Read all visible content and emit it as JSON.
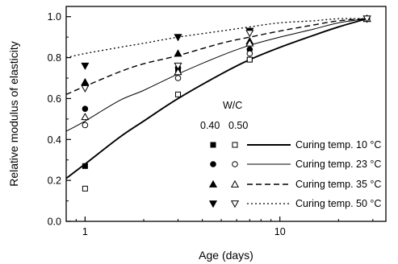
{
  "chart_data": {
    "type": "scatter",
    "xlabel": "Age (days)",
    "ylabel": "Relative modulus of elasticity",
    "x_scale": "log",
    "xlim": [
      0.8,
      35
    ],
    "ylim": [
      0.0,
      1.05
    ],
    "x_ticks": [
      1,
      10
    ],
    "x_tick_labels": [
      "1",
      "10"
    ],
    "y_ticks": [
      0.0,
      0.2,
      0.4,
      0.6,
      0.8,
      1.0
    ],
    "y_tick_labels": [
      "0.0",
      "0.2",
      "0.4",
      "0.6",
      "0.8",
      "1.0"
    ],
    "grid": false,
    "legend_header": "W/C",
    "legend_columns": [
      "0.40",
      "0.50"
    ],
    "series": [
      {
        "name": "Curing temp. 10 °C",
        "line_style": "solid-thick",
        "curve": {
          "x": [
            0.8,
            1,
            1.5,
            2,
            3,
            5,
            7,
            10,
            15,
            20,
            28
          ],
          "y": [
            0.21,
            0.28,
            0.41,
            0.49,
            0.6,
            0.72,
            0.79,
            0.85,
            0.91,
            0.95,
            0.99
          ]
        },
        "wc040": {
          "marker": "square-filled",
          "x": [
            1,
            3,
            7,
            28
          ],
          "y": [
            0.27,
            0.74,
            0.79,
            0.99
          ]
        },
        "wc050": {
          "marker": "square-open",
          "x": [
            1,
            3,
            7,
            28
          ],
          "y": [
            0.16,
            0.62,
            0.79,
            0.99
          ]
        }
      },
      {
        "name": "Curing temp. 23 °C",
        "line_style": "solid-thin",
        "curve": {
          "x": [
            0.8,
            1,
            1.5,
            2,
            3,
            5,
            7,
            10,
            15,
            20,
            28
          ],
          "y": [
            0.44,
            0.49,
            0.59,
            0.64,
            0.72,
            0.81,
            0.86,
            0.9,
            0.94,
            0.97,
            0.99
          ]
        },
        "wc040": {
          "marker": "circle-filled",
          "x": [
            1,
            3,
            7,
            28
          ],
          "y": [
            0.55,
            0.75,
            0.84,
            0.99
          ]
        },
        "wc050": {
          "marker": "circle-open",
          "x": [
            1,
            3,
            7,
            28
          ],
          "y": [
            0.47,
            0.7,
            0.82,
            0.99
          ]
        }
      },
      {
        "name": "Curing temp. 35 °C",
        "line_style": "dashed",
        "curve": {
          "x": [
            0.8,
            1,
            1.5,
            2,
            3,
            5,
            7,
            10,
            15,
            20,
            28
          ],
          "y": [
            0.62,
            0.66,
            0.73,
            0.77,
            0.81,
            0.87,
            0.9,
            0.93,
            0.96,
            0.98,
            0.99
          ]
        },
        "wc040": {
          "marker": "triangle-up-filled",
          "x": [
            1,
            3,
            7,
            28
          ],
          "y": [
            0.68,
            0.82,
            0.88,
            0.99
          ]
        },
        "wc050": {
          "marker": "triangle-up-open",
          "x": [
            1,
            3,
            7,
            28
          ],
          "y": [
            0.51,
            0.73,
            0.87,
            0.99
          ]
        }
      },
      {
        "name": "Curing temp. 50 °C",
        "line_style": "dotted",
        "curve": {
          "x": [
            0.8,
            1,
            1.5,
            2,
            3,
            5,
            7,
            10,
            15,
            20,
            28
          ],
          "y": [
            0.8,
            0.82,
            0.85,
            0.87,
            0.9,
            0.93,
            0.95,
            0.97,
            0.98,
            0.99,
            0.99
          ]
        },
        "wc040": {
          "marker": "triangle-down-filled",
          "x": [
            1,
            3,
            7,
            28
          ],
          "y": [
            0.76,
            0.9,
            0.93,
            0.99
          ]
        },
        "wc050": {
          "marker": "triangle-down-open",
          "x": [
            1,
            3,
            7,
            28
          ],
          "y": [
            0.65,
            0.76,
            0.92,
            0.99
          ]
        }
      }
    ]
  }
}
